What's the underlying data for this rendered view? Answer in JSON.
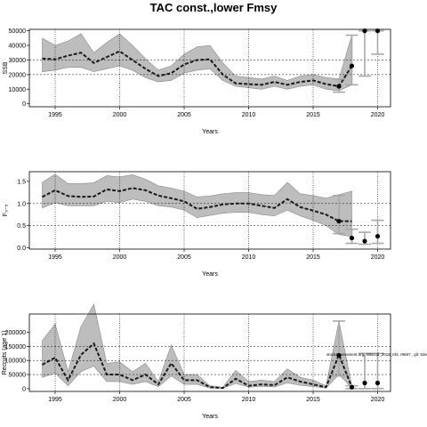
{
  "title": "TAC const.,lower Fmsy",
  "chart_data": [
    {
      "type": "line",
      "ylabel": "SSB",
      "xlabel": "Years",
      "xlim": [
        1993,
        2021
      ],
      "ylim": [
        -2000,
        51000
      ],
      "x_ticks": [
        1995,
        2000,
        2005,
        2010,
        2015,
        2020
      ],
      "y_ticks": [
        0,
        10000,
        20000,
        30000,
        40000,
        50000
      ],
      "grid": true,
      "series": [
        {
          "role": "median",
          "x": [
            1994,
            1995,
            1996,
            1997,
            1998,
            1999,
            2000,
            2001,
            2002,
            2003,
            2004,
            2005,
            2006,
            2007,
            2008,
            2009,
            2010,
            2011,
            2012,
            2013,
            2014,
            2015,
            2016,
            2017,
            2018
          ],
          "values": [
            31000,
            30500,
            33000,
            35000,
            28000,
            32000,
            36000,
            30000,
            24000,
            19000,
            21000,
            27000,
            30000,
            30500,
            20000,
            14000,
            13500,
            13000,
            15000,
            13000,
            15000,
            16000,
            13500,
            12000,
            26000
          ]
        },
        {
          "role": "band-upper",
          "x": [
            1994,
            1995,
            1996,
            1997,
            1998,
            1999,
            2000,
            2001,
            2002,
            2003,
            2004,
            2005,
            2006,
            2007,
            2008,
            2009,
            2010,
            2011,
            2012,
            2013,
            2014,
            2015,
            2016,
            2017,
            2018
          ],
          "values": [
            45000,
            40000,
            43000,
            48000,
            35000,
            42000,
            48000,
            40000,
            31000,
            23000,
            26000,
            34000,
            39000,
            40000,
            28000,
            19000,
            18000,
            17000,
            19000,
            16000,
            19000,
            20000,
            18000,
            17000,
            47000
          ]
        },
        {
          "role": "band-lower",
          "x": [
            1994,
            1995,
            1996,
            1997,
            1998,
            1999,
            2000,
            2001,
            2002,
            2003,
            2004,
            2005,
            2006,
            2007,
            2008,
            2009,
            2010,
            2011,
            2012,
            2013,
            2014,
            2015,
            2016,
            2017,
            2018
          ],
          "values": [
            22000,
            23000,
            25000,
            25000,
            22000,
            24000,
            26000,
            23000,
            18000,
            15000,
            16000,
            21000,
            23000,
            24000,
            16000,
            12000,
            11000,
            10000,
            12000,
            10000,
            12000,
            13000,
            10000,
            9000,
            13000
          ]
        }
      ],
      "points": [
        {
          "x": 2017,
          "y": 12000,
          "err": [
            8000,
            17000
          ]
        },
        {
          "x": 2018,
          "y": 26000,
          "err": [
            13000,
            47000
          ]
        },
        {
          "x": 2019,
          "y": 50000,
          "err": [
            19000,
            50000
          ]
        },
        {
          "x": 2020,
          "y": 50000,
          "err": [
            34000,
            50000
          ]
        }
      ],
      "vlines": [
        1995,
        2000,
        2005,
        2010,
        2015,
        2020
      ],
      "hlines_dashed": [
        20000,
        30000
      ]
    },
    {
      "type": "line",
      "ylabel": "F₃₋₅",
      "xlabel": "Years",
      "xlim": [
        1993,
        2021
      ],
      "ylim": [
        -0.03,
        1.72
      ],
      "x_ticks": [
        1995,
        2000,
        2005,
        2010,
        2015,
        2020
      ],
      "y_ticks": [
        0.0,
        0.5,
        1.0,
        1.5
      ],
      "grid": true,
      "series": [
        {
          "role": "median",
          "x": [
            1994,
            1995,
            1996,
            1997,
            1998,
            1999,
            2000,
            2001,
            2002,
            2003,
            2004,
            2005,
            2006,
            2007,
            2008,
            2009,
            2010,
            2011,
            2012,
            2013,
            2014,
            2015,
            2016,
            2017,
            2018
          ],
          "values": [
            1.15,
            1.3,
            1.17,
            1.15,
            1.16,
            1.32,
            1.28,
            1.35,
            1.3,
            1.18,
            1.12,
            1.05,
            0.88,
            0.92,
            0.98,
            1.0,
            1.0,
            0.95,
            0.9,
            1.1,
            0.92,
            0.84,
            0.75,
            0.6,
            0.6
          ]
        },
        {
          "role": "band-upper",
          "x": [
            1994,
            1995,
            1996,
            1997,
            1998,
            1999,
            2000,
            2001,
            2002,
            2003,
            2004,
            2005,
            2006,
            2007,
            2008,
            2009,
            2010,
            2011,
            2012,
            2013,
            2014,
            2015,
            2016,
            2017,
            2018
          ],
          "values": [
            1.48,
            1.66,
            1.45,
            1.45,
            1.47,
            1.63,
            1.6,
            1.65,
            1.55,
            1.4,
            1.35,
            1.28,
            1.15,
            1.17,
            1.22,
            1.25,
            1.25,
            1.2,
            1.18,
            1.48,
            1.22,
            1.18,
            1.12,
            1.2,
            1.28
          ]
        },
        {
          "role": "band-lower",
          "x": [
            1994,
            1995,
            1996,
            1997,
            1998,
            1999,
            2000,
            2001,
            2002,
            2003,
            2004,
            2005,
            2006,
            2007,
            2008,
            2009,
            2010,
            2011,
            2012,
            2013,
            2014,
            2015,
            2016,
            2017,
            2018
          ],
          "values": [
            0.9,
            1.02,
            0.95,
            0.95,
            0.95,
            1.05,
            1.02,
            1.1,
            1.05,
            0.95,
            0.92,
            0.85,
            0.68,
            0.73,
            0.78,
            0.8,
            0.8,
            0.75,
            0.72,
            0.85,
            0.72,
            0.62,
            0.5,
            0.3,
            0.25
          ]
        }
      ],
      "points": [
        {
          "x": 2017,
          "y": 0.6,
          "err": [
            0.32,
            1.18
          ]
        },
        {
          "x": 2018,
          "y": 0.22,
          "err": [
            0.1,
            0.42
          ]
        },
        {
          "x": 2019,
          "y": 0.15,
          "err": [
            0.08,
            0.35
          ]
        },
        {
          "x": 2020,
          "y": 0.26,
          "err": [
            0.1,
            0.62
          ]
        }
      ],
      "vlines": [
        1995,
        2000,
        2005,
        2010,
        2015,
        2020
      ],
      "hlines_dashed": [
        0.5,
        1.0
      ]
    },
    {
      "type": "line",
      "ylabel": "Recruits (age 1)",
      "xlabel": "Years",
      "xlim": [
        1993,
        2021
      ],
      "ylim": [
        -10000,
        265000
      ],
      "x_ticks": [
        1995,
        2000,
        2005,
        2010,
        2015,
        2020
      ],
      "y_ticks": [
        0,
        50000,
        100000,
        150000,
        200000
      ],
      "grid": true,
      "annotation": "stockassessment.org, WBcod_2018_trbl, r9697 , git: 53e",
      "series": [
        {
          "role": "median",
          "x": [
            1994,
            1995,
            1996,
            1997,
            1998,
            1999,
            2000,
            2001,
            2002,
            2003,
            2004,
            2005,
            2006,
            2007,
            2008,
            2009,
            2010,
            2011,
            2012,
            2013,
            2014,
            2015,
            2016,
            2017,
            2018
          ],
          "values": [
            85000,
            110000,
            30000,
            120000,
            160000,
            50000,
            50000,
            30000,
            50000,
            15000,
            90000,
            30000,
            30000,
            5000,
            2000,
            35000,
            10000,
            15000,
            12000,
            40000,
            25000,
            15000,
            5000,
            120000,
            5000
          ]
        },
        {
          "role": "band-upper",
          "x": [
            1994,
            1995,
            1996,
            1997,
            1998,
            1999,
            2000,
            2001,
            2002,
            2003,
            2004,
            2005,
            2006,
            2007,
            2008,
            2009,
            2010,
            2011,
            2012,
            2013,
            2014,
            2015,
            2016,
            2017,
            2018
          ],
          "values": [
            170000,
            230000,
            60000,
            220000,
            300000,
            90000,
            95000,
            60000,
            90000,
            25000,
            155000,
            50000,
            50000,
            10000,
            5000,
            65000,
            25000,
            30000,
            25000,
            70000,
            40000,
            30000,
            10000,
            240000,
            10000
          ]
        },
        {
          "role": "band-lower",
          "x": [
            1994,
            1995,
            1996,
            1997,
            1998,
            1999,
            2000,
            2001,
            2002,
            2003,
            2004,
            2005,
            2006,
            2007,
            2008,
            2009,
            2010,
            2011,
            2012,
            2013,
            2014,
            2015,
            2016,
            2017,
            2018
          ],
          "values": [
            40000,
            55000,
            10000,
            60000,
            80000,
            25000,
            25000,
            15000,
            25000,
            7000,
            45000,
            15000,
            15000,
            2000,
            1000,
            18000,
            5000,
            8000,
            6000,
            20000,
            12000,
            7000,
            2000,
            50000,
            2000
          ]
        }
      ],
      "points": [
        {
          "x": 2017,
          "y": 118000,
          "err": [
            45000,
            240000
          ]
        },
        {
          "x": 2018,
          "y": 5000,
          "err": [
            0,
            10000
          ]
        },
        {
          "x": 2019,
          "y": 20000,
          "err": [
            0,
            125000
          ]
        },
        {
          "x": 2020,
          "y": 20000,
          "err": [
            0,
            125000
          ]
        }
      ],
      "vlines": [
        1995,
        2000,
        2005,
        2010,
        2015,
        2020
      ],
      "hlines_dashed": [
        50000,
        100000,
        150000
      ]
    }
  ],
  "colors": {
    "band": "#bdbdbd",
    "band_edge": "#8a8a8a",
    "median": "#1a1a1a",
    "errorbar": "#a8a8a8",
    "grid": "#000000"
  }
}
